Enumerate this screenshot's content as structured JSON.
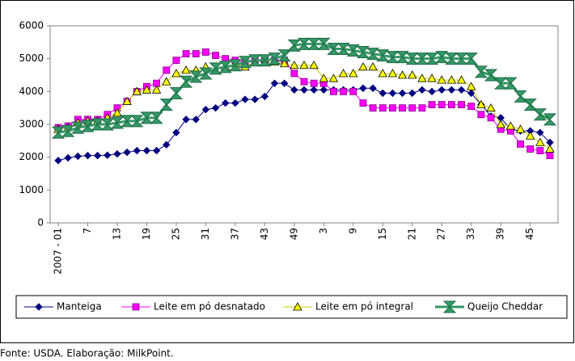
{
  "chart_data": {
    "type": "line",
    "source": "Fonte: USDA. Elaboração: MilkPoint.",
    "categories": [
      "2007 - 01",
      null,
      null,
      "7",
      null,
      null,
      "13",
      null,
      null,
      "19",
      null,
      null,
      "25",
      null,
      null,
      "31",
      null,
      null,
      "37",
      null,
      null,
      "43",
      null,
      null,
      "49",
      null,
      null,
      "3",
      null,
      null,
      "9",
      null,
      null,
      "15",
      null,
      null,
      "21",
      null,
      null,
      "27",
      null,
      null,
      "33",
      null,
      null,
      "39",
      null,
      null,
      "45",
      null,
      null
    ],
    "ylim": [
      0,
      6000
    ],
    "yticks": [
      0,
      1000,
      2000,
      3000,
      4000,
      5000,
      6000
    ],
    "grid": false,
    "series": [
      {
        "name": "Manteiga",
        "color": "#000080",
        "marker": "diamond",
        "values": [
          1900,
          1980,
          2030,
          2050,
          2050,
          2060,
          2100,
          2150,
          2200,
          2200,
          2200,
          2380,
          2750,
          3150,
          3150,
          3450,
          3500,
          3650,
          3650,
          3760,
          3760,
          3850,
          4250,
          4250,
          4050,
          4050,
          4050,
          4050,
          4050,
          4050,
          4050,
          4100,
          4100,
          3950,
          3950,
          3950,
          3950,
          4050,
          4000,
          4050,
          4050,
          4050,
          3950,
          3600,
          3250,
          3200,
          2850,
          2800,
          2800,
          2750,
          2450
        ]
      },
      {
        "name": "Leite em pó desnatado",
        "color": "#ff00ff",
        "marker": "square",
        "values": [
          2900,
          2950,
          3150,
          3150,
          3150,
          3300,
          3500,
          3700,
          4000,
          4150,
          4250,
          4650,
          4950,
          5150,
          5150,
          5200,
          5100,
          5000,
          4950,
          4900,
          4950,
          4950,
          4950,
          4950,
          4550,
          4300,
          4250,
          4250,
          4000,
          4000,
          4000,
          3650,
          3500,
          3500,
          3500,
          3500,
          3500,
          3500,
          3600,
          3600,
          3600,
          3600,
          3550,
          3300,
          3200,
          2850,
          2800,
          2400,
          2250,
          2200,
          2050
        ]
      },
      {
        "name": "Leite em pó integral",
        "color": "#ffff00",
        "marker": "triangle",
        "values": [
          2850,
          2900,
          3050,
          3100,
          3100,
          3200,
          3350,
          3700,
          4000,
          4050,
          4050,
          4300,
          4550,
          4650,
          4650,
          4750,
          4650,
          4750,
          4850,
          4750,
          4900,
          5000,
          4900,
          4850,
          4800,
          4800,
          4800,
          4400,
          4400,
          4550,
          4550,
          4750,
          4750,
          4550,
          4550,
          4500,
          4500,
          4400,
          4400,
          4350,
          4350,
          4350,
          4150,
          3600,
          3500,
          3000,
          2950,
          2850,
          2650,
          2450,
          2250
        ]
      },
      {
        "name": "Queijo Cheddar",
        "color": "#339966",
        "marker": "bowtie",
        "values": [
          2750,
          2800,
          2900,
          2950,
          3000,
          3000,
          3050,
          3100,
          3100,
          3200,
          3200,
          3600,
          3950,
          4300,
          4450,
          4550,
          4700,
          4750,
          4800,
          4900,
          4950,
          4950,
          5000,
          5100,
          5400,
          5450,
          5450,
          5450,
          5300,
          5300,
          5250,
          5200,
          5150,
          5100,
          5050,
          5050,
          5000,
          5000,
          5000,
          5050,
          5000,
          5000,
          5000,
          4600,
          4500,
          4250,
          4250,
          3850,
          3600,
          3300,
          3150
        ]
      }
    ]
  }
}
